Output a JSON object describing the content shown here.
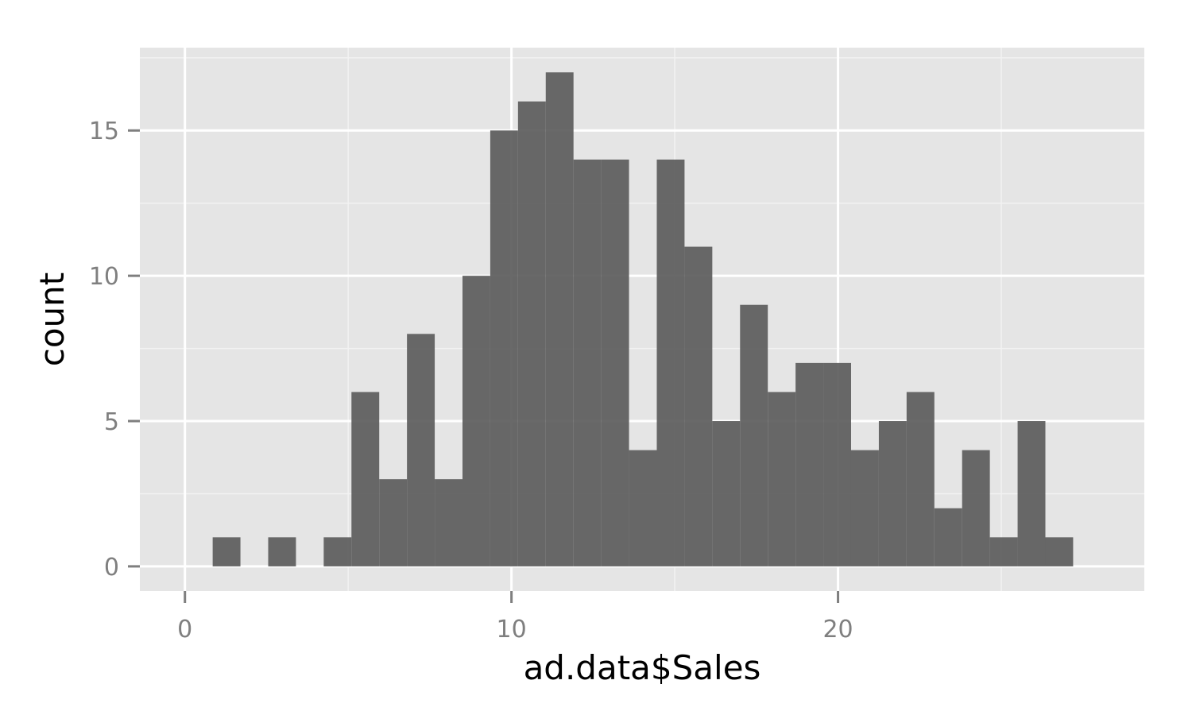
{
  "chart_data": {
    "type": "bar",
    "subtype": "histogram",
    "title": "",
    "xlabel": "ad.data$Sales",
    "ylabel": "count",
    "xlim": [
      -1.38,
      29.38
    ],
    "ylim": [
      -0.85,
      17.85
    ],
    "x_ticks": [
      0,
      10,
      20
    ],
    "y_ticks": [
      0,
      5,
      10,
      15
    ],
    "x_tick_labels": [
      "0",
      "10",
      "20"
    ],
    "y_tick_labels": [
      "0",
      "5",
      "10",
      "15"
    ],
    "bin_width": 0.85,
    "bin_start": 0.85,
    "counts": [
      1,
      0,
      1,
      0,
      1,
      6,
      3,
      8,
      3,
      10,
      15,
      16,
      17,
      14,
      14,
      4,
      14,
      11,
      5,
      9,
      6,
      7,
      7,
      4,
      5,
      6,
      2,
      4,
      1,
      5,
      1
    ],
    "grid": true,
    "legend": "none",
    "colors": {
      "panel_background": "#e5e5e5",
      "major_grid": "#ffffff",
      "minor_grid": "#f2f2f2",
      "bar_fill": "#595959",
      "bar_opacity": 0.9,
      "tick_label": "#7f7f7f",
      "axis_title": "#000000"
    }
  }
}
